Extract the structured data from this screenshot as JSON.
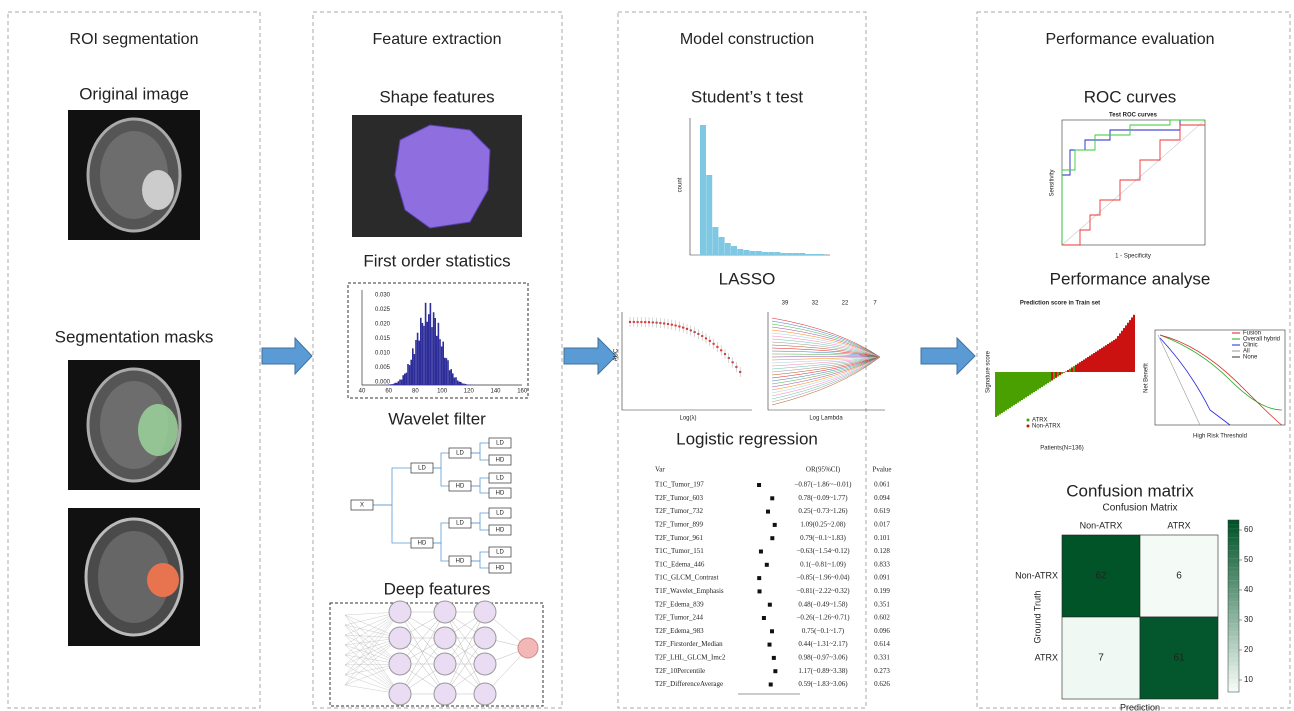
{
  "panels": [
    {
      "title": "ROI segmentation",
      "sections": [
        "Original image",
        "Segmentation masks"
      ]
    },
    {
      "title": "Feature extraction",
      "sections": [
        "Shape features",
        "First order statistics",
        "Wavelet filter",
        "Deep features"
      ]
    },
    {
      "title": "Model construction",
      "sections": [
        "Student’s t test",
        "LASSO",
        "Logistic regression"
      ]
    },
    {
      "title": "Performance evaluation",
      "sections": [
        "ROC curves",
        "Performance analyse",
        "Confusion matrix"
      ]
    }
  ],
  "histogram": {
    "xticks": [
      "40",
      "60",
      "80",
      "100",
      "120",
      "140",
      "160"
    ],
    "yticks": [
      "0.000",
      "0.005",
      "0.010",
      "0.015",
      "0.020",
      "0.025",
      "0.030"
    ]
  },
  "wavelet": {
    "root": "X",
    "level1": [
      "LD",
      "HD"
    ],
    "level2": [
      "LD",
      "HD",
      "LD",
      "HD"
    ],
    "level3": [
      "LD",
      "HD",
      "LD",
      "HD",
      "LD",
      "HD",
      "LD",
      "HD"
    ]
  },
  "t_test": {
    "ylabel": "count"
  },
  "lasso": {
    "left_ylabel": "AUC",
    "left_xlabel": "Log(λ)",
    "right_xlabel": "Log Lambda",
    "right_top": [
      "39",
      "32",
      "22",
      "7"
    ]
  },
  "logistic": {
    "headers": [
      "Var",
      "OR(95%CI)",
      "Pvalue"
    ],
    "rows": [
      [
        "T1C_Tumor_197",
        "−0.87(−1.86~−0.01)",
        "0.061"
      ],
      [
        "T2F_Tumor_603",
        "0.78(−0.09~1.77)",
        "0.094"
      ],
      [
        "T2F_Tumor_732",
        "0.25(−0.73~1.26)",
        "0.619"
      ],
      [
        "T2F_Tumor_899",
        "1.09(0.25~2.08)",
        "0.017"
      ],
      [
        "T2F_Tumor_961",
        "0.79(−0.1~1.83)",
        "0.101"
      ],
      [
        "T1C_Tumor_151",
        "−0.63(−1.54~0.12)",
        "0.128"
      ],
      [
        "T1C_Edema_446",
        "0.1(−0.81~1.09)",
        "0.833"
      ],
      [
        "T1C_GLCM_Contrast",
        "−0.85(−1.96~0.04)",
        "0.091"
      ],
      [
        "T1F_Wavelet_Emphasis",
        "−0.81(−2.22~0.32)",
        "0.199"
      ],
      [
        "T2F_Edema_839",
        "0.48(−0.49~1.58)",
        "0.351"
      ],
      [
        "T2F_Tumor_244",
        "−0.26(−1.26~0.71)",
        "0.602"
      ],
      [
        "T2F_Edema_983",
        "0.75(−0.1~1.7)",
        "0.096"
      ],
      [
        "T2F_Firstorder_Median",
        "0.44(−1.31~2.17)",
        "0.614"
      ],
      [
        "T2F_LHL_GLCM_Imc2",
        "0.98(−0.97~3.06)",
        "0.331"
      ],
      [
        "T2F_10Percentile",
        "1.17(−0.89~3.38)",
        "0.273"
      ],
      [
        "T2F_DifferenceAverage",
        "0.59(−1.83~3.06)",
        "0.626"
      ]
    ]
  },
  "roc": {
    "title": "Test ROC curves",
    "xlabel": "1 - Specificity",
    "ylabel": "Sensitivity"
  },
  "performance": {
    "title": "Prediction score in Train set",
    "ylabel": "Signature score",
    "xlabel": "Patients(N=136)",
    "legend": [
      "ATRX",
      "Non-ATRX"
    ],
    "dca_ylabel": "Net Benefit",
    "dca_xlabel": "High Risk Threshold",
    "dca_legend": [
      "Fusion",
      "Overall hybrid",
      "Clinic",
      "All",
      "None"
    ]
  },
  "confusion": {
    "title": "Confusion Matrix",
    "labels": [
      "Non-ATRX",
      "ATRX"
    ],
    "ylabel": "Ground Truth",
    "xlabel": "Prediction",
    "matrix": [
      [
        62,
        6
      ],
      [
        7,
        61
      ]
    ],
    "colorbar_ticks": [
      10,
      20,
      30,
      40,
      50,
      60
    ]
  }
}
